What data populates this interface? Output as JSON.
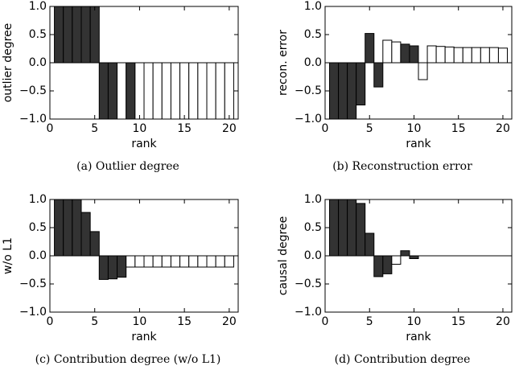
{
  "chart_data": [
    {
      "type": "bar",
      "caption": "(a) Outlier degree",
      "xlabel": "rank",
      "ylabel": "outlier degree",
      "x": [
        1,
        2,
        3,
        4,
        5,
        6,
        7,
        8,
        9,
        10,
        11,
        12,
        13,
        14,
        15,
        16,
        17,
        18,
        19,
        20
      ],
      "values": [
        1,
        1,
        1,
        1,
        1,
        -1,
        -1,
        -1,
        -1,
        -1,
        -1,
        -1,
        -1,
        -1,
        -1,
        -1,
        -1,
        -1,
        -1,
        -1
      ],
      "colors": [
        "#333333",
        "#333333",
        "#333333",
        "#333333",
        "#333333",
        "#333333",
        "#333333",
        "#ffffff",
        "#333333",
        "#ffffff",
        "#ffffff",
        "#ffffff",
        "#ffffff",
        "#ffffff",
        "#ffffff",
        "#ffffff",
        "#ffffff",
        "#ffffff",
        "#ffffff",
        "#ffffff"
      ],
      "xlim": [
        0,
        21
      ],
      "ylim": [
        -1,
        1
      ],
      "xticks": [
        0,
        5,
        10,
        15,
        20
      ],
      "yticks": [
        {
          "value": -1,
          "label": "−1.0"
        },
        {
          "value": -0.5,
          "label": "−0.5"
        },
        {
          "value": 0,
          "label": "0.0"
        },
        {
          "value": 0.5,
          "label": "0.5"
        },
        {
          "value": 1,
          "label": "1.0"
        }
      ]
    },
    {
      "type": "bar",
      "caption": "(b) Reconstruction error",
      "xlabel": "rank",
      "ylabel": "recon. error",
      "x": [
        1,
        2,
        3,
        4,
        5,
        6,
        7,
        8,
        9,
        10,
        11,
        12,
        13,
        14,
        15,
        16,
        17,
        18,
        19,
        20
      ],
      "values": [
        -1,
        -1,
        -1,
        -0.75,
        0.52,
        -0.43,
        0.4,
        0.37,
        0.33,
        0.3,
        -0.3,
        0.3,
        0.29,
        0.28,
        0.27,
        0.27,
        0.27,
        0.27,
        0.27,
        0.26
      ],
      "colors": [
        "#333333",
        "#333333",
        "#333333",
        "#333333",
        "#333333",
        "#333333",
        "#ffffff",
        "#ffffff",
        "#333333",
        "#333333",
        "#ffffff",
        "#ffffff",
        "#ffffff",
        "#ffffff",
        "#ffffff",
        "#ffffff",
        "#ffffff",
        "#ffffff",
        "#ffffff",
        "#ffffff"
      ],
      "xlim": [
        0,
        21
      ],
      "ylim": [
        -1,
        1
      ],
      "xticks": [
        0,
        5,
        10,
        15,
        20
      ],
      "yticks": [
        {
          "value": -1,
          "label": "−1.0"
        },
        {
          "value": -0.5,
          "label": "−0.5"
        },
        {
          "value": 0,
          "label": "0.0"
        },
        {
          "value": 0.5,
          "label": "0.5"
        },
        {
          "value": 1,
          "label": "1.0"
        }
      ]
    },
    {
      "type": "bar",
      "caption": "(c) Contribution degree (w/o L1)",
      "xlabel": "rank",
      "ylabel": "w/o L1",
      "x": [
        1,
        2,
        3,
        4,
        5,
        6,
        7,
        8,
        9,
        10,
        11,
        12,
        13,
        14,
        15,
        16,
        17,
        18,
        19,
        20
      ],
      "values": [
        1,
        1,
        1,
        0.77,
        0.43,
        -0.42,
        -0.41,
        -0.38,
        -0.2,
        -0.2,
        -0.2,
        -0.2,
        -0.2,
        -0.2,
        -0.2,
        -0.2,
        -0.2,
        -0.2,
        -0.2,
        -0.2
      ],
      "colors": [
        "#333333",
        "#333333",
        "#333333",
        "#333333",
        "#333333",
        "#333333",
        "#333333",
        "#333333",
        "#ffffff",
        "#ffffff",
        "#ffffff",
        "#ffffff",
        "#ffffff",
        "#ffffff",
        "#ffffff",
        "#ffffff",
        "#ffffff",
        "#ffffff",
        "#ffffff",
        "#ffffff"
      ],
      "xlim": [
        0,
        21
      ],
      "ylim": [
        -1,
        1
      ],
      "xticks": [
        0,
        5,
        10,
        15,
        20
      ],
      "yticks": [
        {
          "value": -1,
          "label": "−1.0"
        },
        {
          "value": -0.5,
          "label": "−0.5"
        },
        {
          "value": 0,
          "label": "0.0"
        },
        {
          "value": 0.5,
          "label": "0.5"
        },
        {
          "value": 1,
          "label": "1.0"
        }
      ]
    },
    {
      "type": "bar",
      "caption": "(d) Contribution degree",
      "xlabel": "rank",
      "ylabel": "causal degree",
      "x": [
        1,
        2,
        3,
        4,
        5,
        6,
        7,
        8,
        9,
        10,
        11,
        12,
        13,
        14,
        15,
        16,
        17,
        18,
        19,
        20
      ],
      "values": [
        1,
        1,
        1,
        0.93,
        0.4,
        -0.37,
        -0.32,
        -0.15,
        0.09,
        -0.05,
        0,
        0,
        0,
        0,
        0,
        0,
        0,
        0,
        0,
        0
      ],
      "colors": [
        "#333333",
        "#333333",
        "#333333",
        "#333333",
        "#333333",
        "#333333",
        "#333333",
        "#ffffff",
        "#333333",
        "#333333",
        "#ffffff",
        "#ffffff",
        "#ffffff",
        "#ffffff",
        "#ffffff",
        "#ffffff",
        "#ffffff",
        "#ffffff",
        "#ffffff",
        "#ffffff"
      ],
      "xlim": [
        0,
        21
      ],
      "ylim": [
        -1,
        1
      ],
      "xticks": [
        0,
        5,
        10,
        15,
        20
      ],
      "yticks": [
        {
          "value": -1,
          "label": "−1.0"
        },
        {
          "value": -0.5,
          "label": "−0.5"
        },
        {
          "value": 0,
          "label": "0.0"
        },
        {
          "value": 0.5,
          "label": "0.5"
        },
        {
          "value": 1,
          "label": "1.0"
        }
      ]
    }
  ]
}
